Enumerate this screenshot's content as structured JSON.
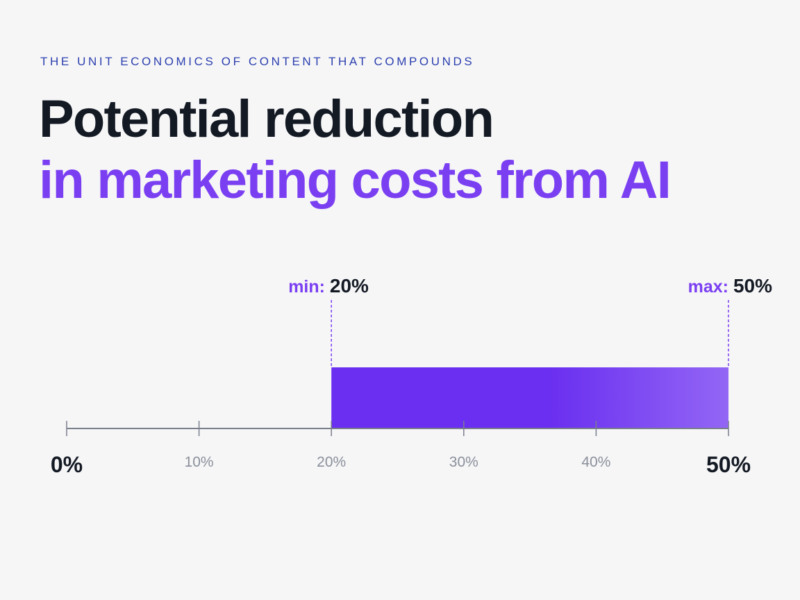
{
  "eyebrow": "THE UNIT ECONOMICS OF CONTENT THAT COMPOUNDS",
  "title": {
    "line1": "Potential reduction",
    "line2": "in marketing costs from AI"
  },
  "colors": {
    "accent": "#7b3ff2",
    "bar_start": "#6a2ff0",
    "bar_end": "#9366f5",
    "dark": "#141a24",
    "axis": "#7a7f8c",
    "tick_label": "#8a8f9a",
    "eyebrow": "#2b3fae"
  },
  "chart_data": {
    "type": "bar",
    "orientation": "horizontal",
    "range": {
      "min": 20,
      "max": 50
    },
    "markers": [
      {
        "label": "min:",
        "value_label": "20%",
        "value": 20
      },
      {
        "label": "max:",
        "value_label": "50%",
        "value": 50
      }
    ],
    "xlim": [
      0,
      50
    ],
    "ticks": [
      {
        "value": 0,
        "label": "0%",
        "emphasis": true
      },
      {
        "value": 10,
        "label": "10%",
        "emphasis": false
      },
      {
        "value": 20,
        "label": "20%",
        "emphasis": false
      },
      {
        "value": 30,
        "label": "30%",
        "emphasis": false
      },
      {
        "value": 40,
        "label": "40%",
        "emphasis": false
      },
      {
        "value": 50,
        "label": "50%",
        "emphasis": true
      }
    ]
  }
}
